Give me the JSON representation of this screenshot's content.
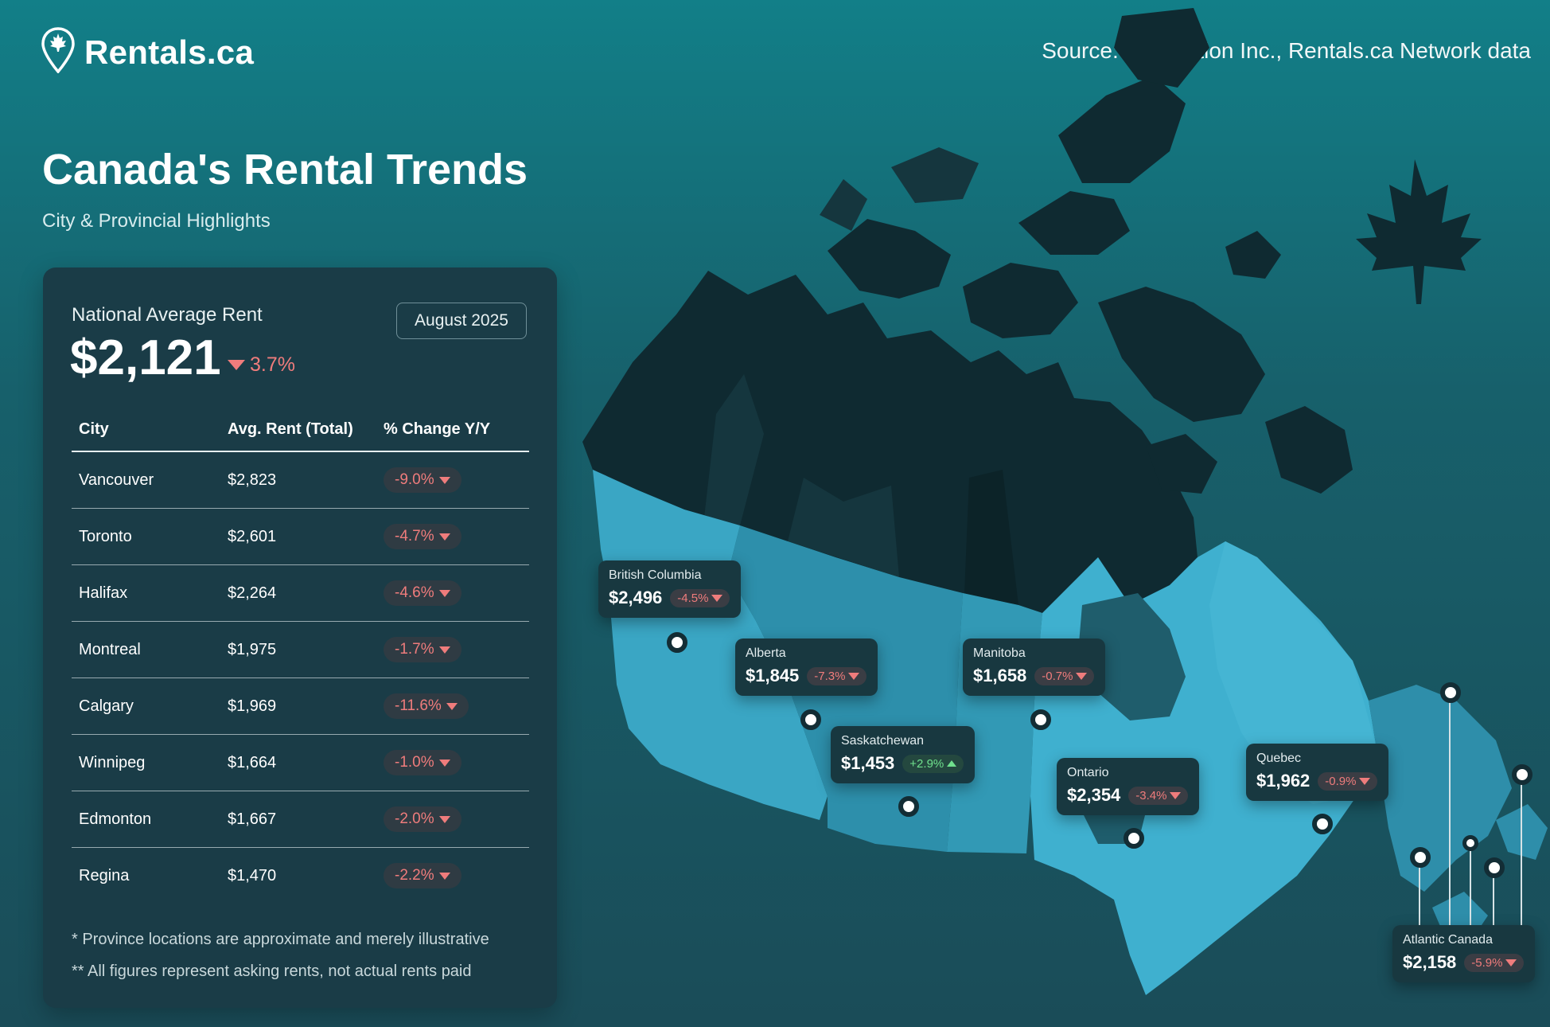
{
  "brand": {
    "name": "Rentals.ca",
    "logo_icon": "map-pin-maple-leaf-icon"
  },
  "source": "Source: Urbanation Inc., Rentals.ca Network data",
  "title": "Canada's Rental Trends",
  "subtitle": "City & Provincial Highlights",
  "national": {
    "label": "National Average Rent",
    "value": "$2,121",
    "change": "3.7%",
    "direction": "down",
    "period": "August 2025"
  },
  "table": {
    "headers": [
      "City",
      "Avg. Rent (Total)",
      "% Change Y/Y"
    ],
    "rows": [
      {
        "city": "Vancouver",
        "rent": "$2,823",
        "change": "-9.0%"
      },
      {
        "city": "Toronto",
        "rent": "$2,601",
        "change": "-4.7%"
      },
      {
        "city": "Halifax",
        "rent": "$2,264",
        "change": "-4.6%"
      },
      {
        "city": "Montreal",
        "rent": "$1,975",
        "change": "-1.7%"
      },
      {
        "city": "Calgary",
        "rent": "$1,969",
        "change": "-11.6%"
      },
      {
        "city": "Winnipeg",
        "rent": "$1,664",
        "change": "-1.0%"
      },
      {
        "city": "Edmonton",
        "rent": "$1,667",
        "change": "-2.0%"
      },
      {
        "city": "Regina",
        "rent": "$1,470",
        "change": "-2.2%"
      }
    ]
  },
  "notes": [
    "* Province locations are approximate and merely illustrative",
    "** All figures represent asking rents, not actual rents paid"
  ],
  "provinces": [
    {
      "name": "British Columbia",
      "rent": "$2,496",
      "change": "-4.5%",
      "direction": "down"
    },
    {
      "name": "Alberta",
      "rent": "$1,845",
      "change": "-7.3%",
      "direction": "down"
    },
    {
      "name": "Saskatchewan",
      "rent": "$1,453",
      "change": "+2.9%",
      "direction": "up"
    },
    {
      "name": "Manitoba",
      "rent": "$1,658",
      "change": "-0.7%",
      "direction": "down"
    },
    {
      "name": "Ontario",
      "rent": "$2,354",
      "change": "-3.4%",
      "direction": "down"
    },
    {
      "name": "Quebec",
      "rent": "$1,962",
      "change": "-0.9%",
      "direction": "down"
    },
    {
      "name": "Atlantic Canada",
      "rent": "$2,158",
      "change": "-5.9%",
      "direction": "down"
    }
  ],
  "colors": {
    "background_top": "#127f88",
    "background_bottom": "#1a4c58",
    "panel": "#1a3c47",
    "north_territory": "#0f2a31",
    "south_province": "#3aa6c4",
    "negative": "#ef7c7c",
    "positive": "#6fe08d"
  }
}
